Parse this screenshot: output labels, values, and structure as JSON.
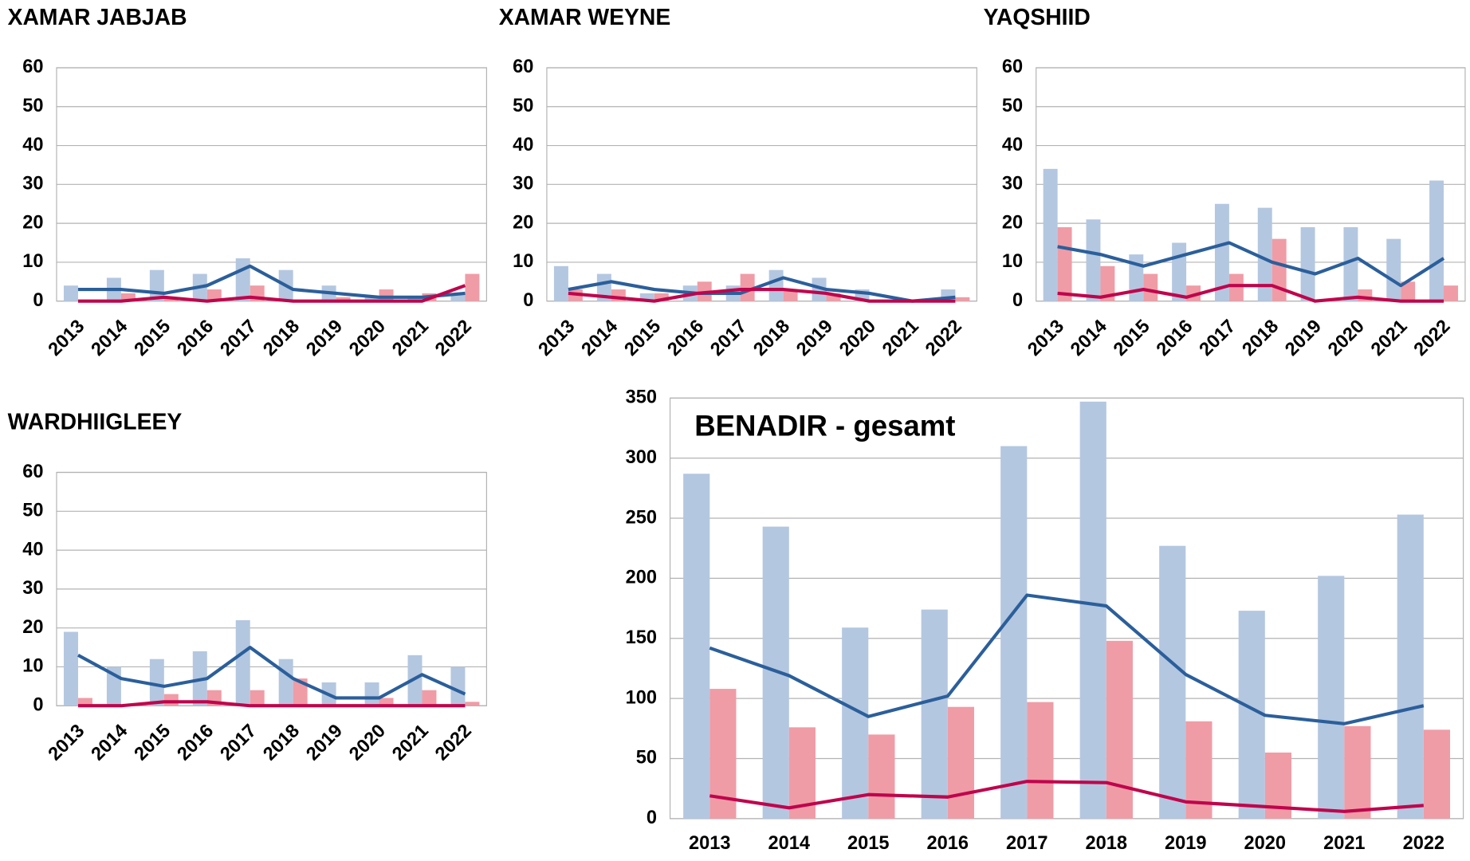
{
  "chart_data": [
    {
      "type": "combo",
      "title": "XAMAR JABJAB",
      "categories": [
        "2013",
        "2014",
        "2015",
        "2016",
        "2017",
        "2018",
        "2019",
        "2020",
        "2021",
        "2022"
      ],
      "series": [
        {
          "type": "bar",
          "color": "#b4c7e0",
          "values": [
            4,
            6,
            8,
            7,
            11,
            8,
            4,
            1,
            1,
            2
          ]
        },
        {
          "type": "bar",
          "color": "#ef9ca6",
          "values": [
            0,
            2,
            1,
            3,
            4,
            0,
            1,
            3,
            2,
            7
          ]
        },
        {
          "type": "line",
          "color": "#2b5f9b",
          "values": [
            3,
            3,
            2,
            4,
            9,
            3,
            2,
            1,
            1,
            2
          ]
        },
        {
          "type": "line",
          "color": "#c0044c",
          "values": [
            0,
            0,
            1,
            0,
            1,
            0,
            0,
            0,
            0,
            4
          ]
        }
      ],
      "ylim": [
        0,
        60
      ],
      "yticks": [
        0,
        10,
        20,
        30,
        40,
        50,
        60
      ],
      "grid": true
    },
    {
      "type": "combo",
      "title": "XAMAR WEYNE",
      "categories": [
        "2013",
        "2014",
        "2015",
        "2016",
        "2017",
        "2018",
        "2019",
        "2020",
        "2021",
        "2022"
      ],
      "series": [
        {
          "type": "bar",
          "color": "#b4c7e0",
          "values": [
            9,
            7,
            2,
            4,
            4,
            8,
            6,
            3,
            0,
            3
          ]
        },
        {
          "type": "bar",
          "color": "#ef9ca6",
          "values": [
            3,
            3,
            2,
            5,
            7,
            3,
            2,
            0,
            0,
            1
          ]
        },
        {
          "type": "line",
          "color": "#2b5f9b",
          "values": [
            3,
            5,
            3,
            2,
            2,
            6,
            3,
            2,
            0,
            1
          ]
        },
        {
          "type": "line",
          "color": "#c0044c",
          "values": [
            2,
            1,
            0,
            2,
            3,
            3,
            2,
            0,
            0,
            0
          ]
        }
      ],
      "ylim": [
        0,
        60
      ],
      "yticks": [
        0,
        10,
        20,
        30,
        40,
        50,
        60
      ],
      "grid": true
    },
    {
      "type": "combo",
      "title": "YAQSHIID",
      "categories": [
        "2013",
        "2014",
        "2015",
        "2016",
        "2017",
        "2018",
        "2019",
        "2020",
        "2021",
        "2022"
      ],
      "series": [
        {
          "type": "bar",
          "color": "#b4c7e0",
          "values": [
            34,
            21,
            12,
            15,
            25,
            24,
            19,
            19,
            16,
            31
          ]
        },
        {
          "type": "bar",
          "color": "#ef9ca6",
          "values": [
            19,
            9,
            7,
            4,
            7,
            16,
            0,
            3,
            5,
            4
          ]
        },
        {
          "type": "line",
          "color": "#2b5f9b",
          "values": [
            14,
            12,
            9,
            12,
            15,
            10,
            7,
            11,
            4,
            11
          ]
        },
        {
          "type": "line",
          "color": "#c0044c",
          "values": [
            2,
            1,
            3,
            1,
            4,
            4,
            0,
            1,
            0,
            0
          ]
        }
      ],
      "ylim": [
        0,
        60
      ],
      "yticks": [
        0,
        10,
        20,
        30,
        40,
        50,
        60
      ],
      "grid": true
    },
    {
      "type": "combo",
      "title": "WARDHIIGLEEY",
      "categories": [
        "2013",
        "2014",
        "2015",
        "2016",
        "2017",
        "2018",
        "2019",
        "2020",
        "2021",
        "2022"
      ],
      "series": [
        {
          "type": "bar",
          "color": "#b4c7e0",
          "values": [
            19,
            10,
            12,
            14,
            22,
            12,
            6,
            6,
            13,
            10
          ]
        },
        {
          "type": "bar",
          "color": "#ef9ca6",
          "values": [
            2,
            0,
            3,
            4,
            4,
            7,
            0,
            2,
            4,
            1
          ]
        },
        {
          "type": "line",
          "color": "#2b5f9b",
          "values": [
            13,
            7,
            5,
            7,
            15,
            7,
            2,
            2,
            8,
            3
          ]
        },
        {
          "type": "line",
          "color": "#c0044c",
          "values": [
            0,
            0,
            1,
            1,
            0,
            0,
            0,
            0,
            0,
            0
          ]
        }
      ],
      "ylim": [
        0,
        60
      ],
      "yticks": [
        0,
        10,
        20,
        30,
        40,
        50,
        60
      ],
      "grid": true
    },
    {
      "type": "combo",
      "title": "BENADIR - gesamt",
      "categories": [
        "2013",
        "2014",
        "2015",
        "2016",
        "2017",
        "2018",
        "2019",
        "2020",
        "2021",
        "2022"
      ],
      "series": [
        {
          "type": "bar",
          "color": "#b4c7e0",
          "values": [
            287,
            243,
            159,
            174,
            310,
            347,
            227,
            173,
            202,
            253
          ]
        },
        {
          "type": "bar",
          "color": "#ef9ca6",
          "values": [
            108,
            76,
            70,
            93,
            97,
            148,
            81,
            55,
            77,
            74
          ]
        },
        {
          "type": "line",
          "color": "#2b5f9b",
          "values": [
            142,
            119,
            85,
            102,
            186,
            177,
            120,
            86,
            79,
            94
          ]
        },
        {
          "type": "line",
          "color": "#c0044c",
          "values": [
            19,
            9,
            20,
            18,
            31,
            30,
            14,
            10,
            6,
            11
          ]
        }
      ],
      "ylim": [
        0,
        350
      ],
      "yticks": [
        0,
        50,
        100,
        150,
        200,
        250,
        300,
        350
      ],
      "grid": true
    }
  ]
}
